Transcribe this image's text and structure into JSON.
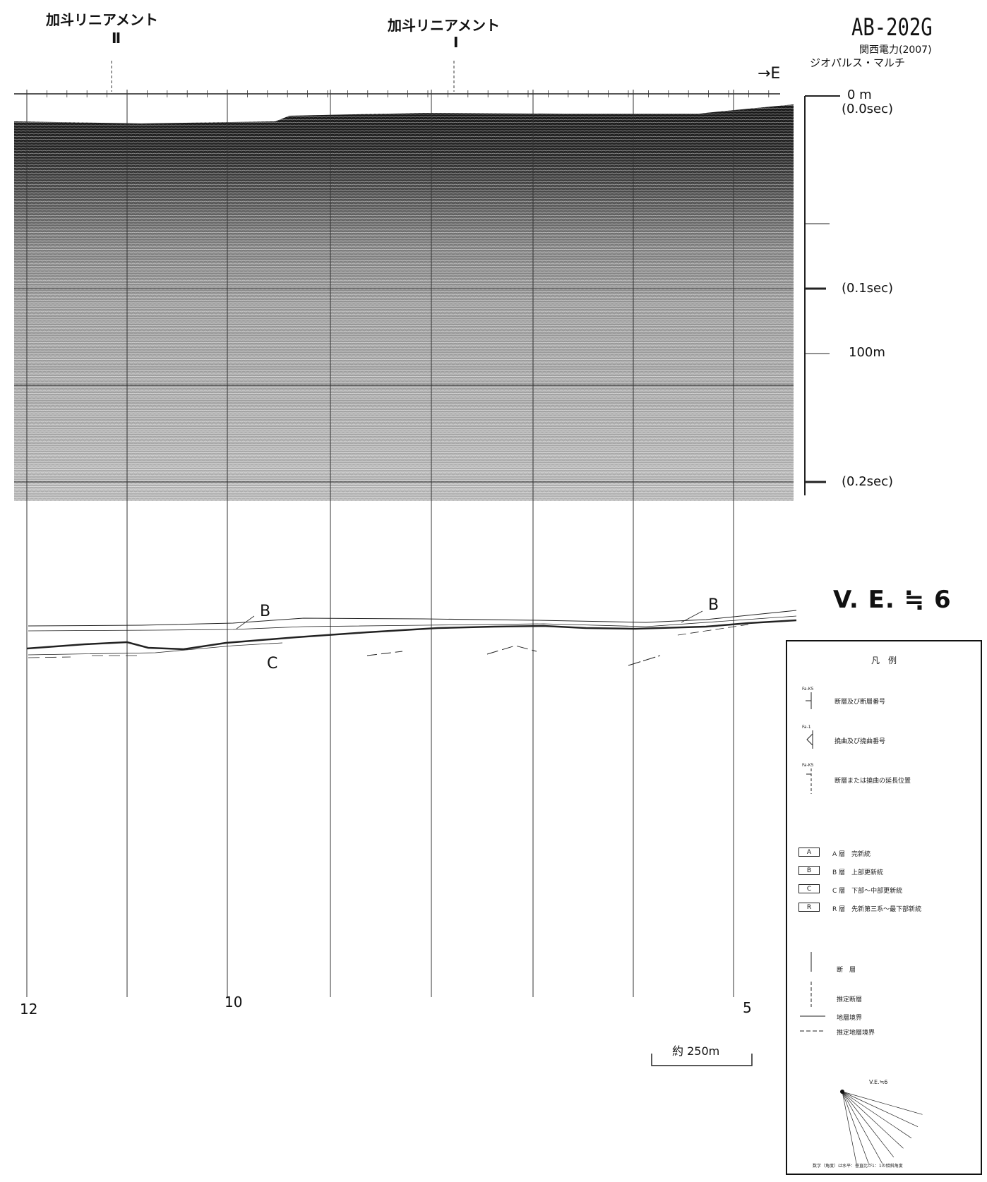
{
  "lineament_2": {
    "name": "加斗リニアメント",
    "numeral": "Ⅱ"
  },
  "lineament_1": {
    "name": "加斗リニアメント",
    "numeral": "Ⅰ"
  },
  "profile_id": "AB-202G",
  "source": "関西電力(2007)",
  "method": "ジオパルス・マルチ",
  "direction": "→E",
  "depth_scale": {
    "top_m": "0 m",
    "top_sec": "(0.0sec)",
    "mid_sec": "(0.1sec)",
    "mid_m": "100m",
    "bottom_sec": "(0.2sec)"
  },
  "vertical_exaggeration": "V. E. ≒ 6",
  "horizons": {
    "upper": "B",
    "lower": "C",
    "right": "B"
  },
  "shot_points": {
    "left": "12",
    "middle": "10",
    "right": "5"
  },
  "scale_bar": "約 250m",
  "legend": {
    "title": "凡　例",
    "faults": [
      {
        "code": "Fa-K5",
        "text": "断層及び断層番号"
      },
      {
        "code": "Fa-1",
        "text": "撓曲及び撓曲番号"
      },
      {
        "code": "Fa-K5",
        "text": "断層または撓曲の延長位置"
      }
    ],
    "layers": [
      {
        "box": "A",
        "text": "A 層　完新統"
      },
      {
        "box": "B",
        "text": "B 層　上部更新統"
      },
      {
        "box": "C",
        "text": "C 層　下部～中部更新統"
      },
      {
        "box": "R",
        "text": "R 層　先新第三系～最下部新統"
      }
    ],
    "lines": [
      {
        "text": "断　層"
      },
      {
        "text": "推定断層"
      },
      {
        "text": "地層境界"
      },
      {
        "text": "推定地層境界"
      }
    ],
    "ve_title": "V.E.≒6",
    "footnote": "数字（角度）は水平：垂直比が1：1の傾斜角度"
  }
}
